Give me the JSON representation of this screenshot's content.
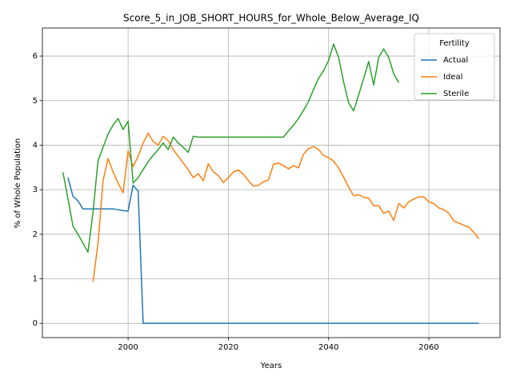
{
  "chart_data": {
    "type": "line",
    "title": "Score_5_in_JOB_SHORT_HOURS_for_Whole_Below_Average_IQ",
    "x_label": "Years",
    "y_label": "% of Whole Population",
    "legend_title": "Fertility",
    "legend_position": "upper right",
    "grid": true,
    "xlim": [
      1982.9,
      2074.2
    ],
    "ylim": [
      -0.32,
      6.63
    ],
    "xticks": [
      2000,
      2020,
      2040,
      2060
    ],
    "yticks": [
      0,
      1,
      2,
      3,
      4,
      5,
      6
    ],
    "x": [
      1987,
      1988,
      1989,
      1990,
      1991,
      1992,
      1993,
      1994,
      1995,
      1996,
      1997,
      1998,
      1999,
      2000,
      2001,
      2002,
      2003,
      2004,
      2005,
      2006,
      2007,
      2008,
      2009,
      2010,
      2011,
      2012,
      2013,
      2014,
      2015,
      2016,
      2017,
      2018,
      2019,
      2020,
      2021,
      2022,
      2023,
      2024,
      2025,
      2026,
      2027,
      2028,
      2029,
      2030,
      2031,
      2032,
      2033,
      2034,
      2035,
      2036,
      2037,
      2038,
      2039,
      2040,
      2041,
      2042,
      2043,
      2044,
      2045,
      2046,
      2047,
      2048,
      2049,
      2050,
      2051,
      2052,
      2053,
      2054,
      2055,
      2056,
      2057,
      2058,
      2059,
      2060,
      2061,
      2062,
      2063,
      2064,
      2065,
      2066,
      2067,
      2068,
      2069,
      2070
    ],
    "series": [
      {
        "name": "Actual",
        "color": "#1f77b4",
        "values": [
          null,
          3.27,
          2.85,
          2.75,
          2.57,
          2.57,
          2.57,
          2.57,
          2.57,
          2.57,
          2.57,
          2.55,
          2.53,
          2.52,
          3.1,
          2.97,
          0,
          0,
          0,
          0,
          0,
          0,
          0,
          0,
          0,
          0,
          0,
          0,
          0,
          0,
          0,
          0,
          0,
          0,
          0,
          0,
          0,
          0,
          0,
          0,
          0,
          0,
          0,
          0,
          0,
          0,
          0,
          0,
          0,
          0,
          0,
          0,
          0,
          0,
          0,
          0,
          0,
          0,
          0,
          0,
          0,
          0,
          0,
          0,
          0,
          0,
          0,
          0,
          0,
          0,
          0,
          0,
          0,
          0,
          0,
          0,
          0,
          0,
          0,
          0,
          0,
          0,
          0,
          0
        ]
      },
      {
        "name": "Ideal",
        "color": "#ff7f0e",
        "values": [
          null,
          null,
          null,
          null,
          null,
          null,
          0.93,
          1.8,
          3.2,
          3.7,
          3.4,
          3.15,
          2.93,
          3.87,
          3.52,
          3.75,
          4.05,
          4.27,
          4.08,
          4.0,
          4.2,
          4.1,
          3.9,
          3.75,
          3.6,
          3.45,
          3.27,
          3.36,
          3.2,
          3.58,
          3.4,
          3.32,
          3.16,
          3.27,
          3.4,
          3.44,
          3.35,
          3.2,
          3.08,
          3.1,
          3.18,
          3.22,
          3.57,
          3.6,
          3.54,
          3.47,
          3.54,
          3.49,
          3.8,
          3.92,
          3.97,
          3.9,
          3.77,
          3.72,
          3.64,
          3.49,
          3.28,
          3.06,
          2.86,
          2.89,
          2.83,
          2.81,
          2.64,
          2.64,
          2.47,
          2.52,
          2.31,
          2.69,
          2.59,
          2.73,
          2.79,
          2.84,
          2.84,
          2.73,
          2.69,
          2.59,
          2.55,
          2.47,
          2.3,
          2.25,
          2.2,
          2.16,
          2.04,
          1.9
        ]
      },
      {
        "name": "Sterile",
        "color": "#2ca02c",
        "values": [
          3.39,
          2.8,
          2.18,
          2.0,
          1.8,
          1.6,
          2.5,
          3.65,
          3.95,
          4.25,
          4.45,
          4.6,
          4.35,
          4.54,
          3.15,
          3.27,
          3.45,
          3.63,
          3.77,
          3.9,
          4.05,
          3.9,
          4.18,
          4.05,
          3.95,
          3.84,
          4.2,
          4.18,
          4.18,
          4.18,
          4.18,
          4.18,
          4.18,
          4.18,
          4.18,
          4.18,
          4.18,
          4.18,
          4.18,
          4.18,
          4.18,
          4.18,
          4.18,
          4.18,
          4.18,
          4.32,
          4.45,
          4.6,
          4.78,
          4.98,
          5.25,
          5.5,
          5.67,
          5.9,
          6.27,
          5.97,
          5.42,
          4.95,
          4.77,
          5.13,
          5.5,
          5.88,
          5.35,
          5.97,
          6.16,
          5.97,
          5.6,
          5.4,
          null,
          null,
          null,
          null,
          null,
          null,
          null,
          null,
          null,
          null,
          null,
          null,
          null,
          null,
          null,
          null
        ]
      }
    ]
  }
}
